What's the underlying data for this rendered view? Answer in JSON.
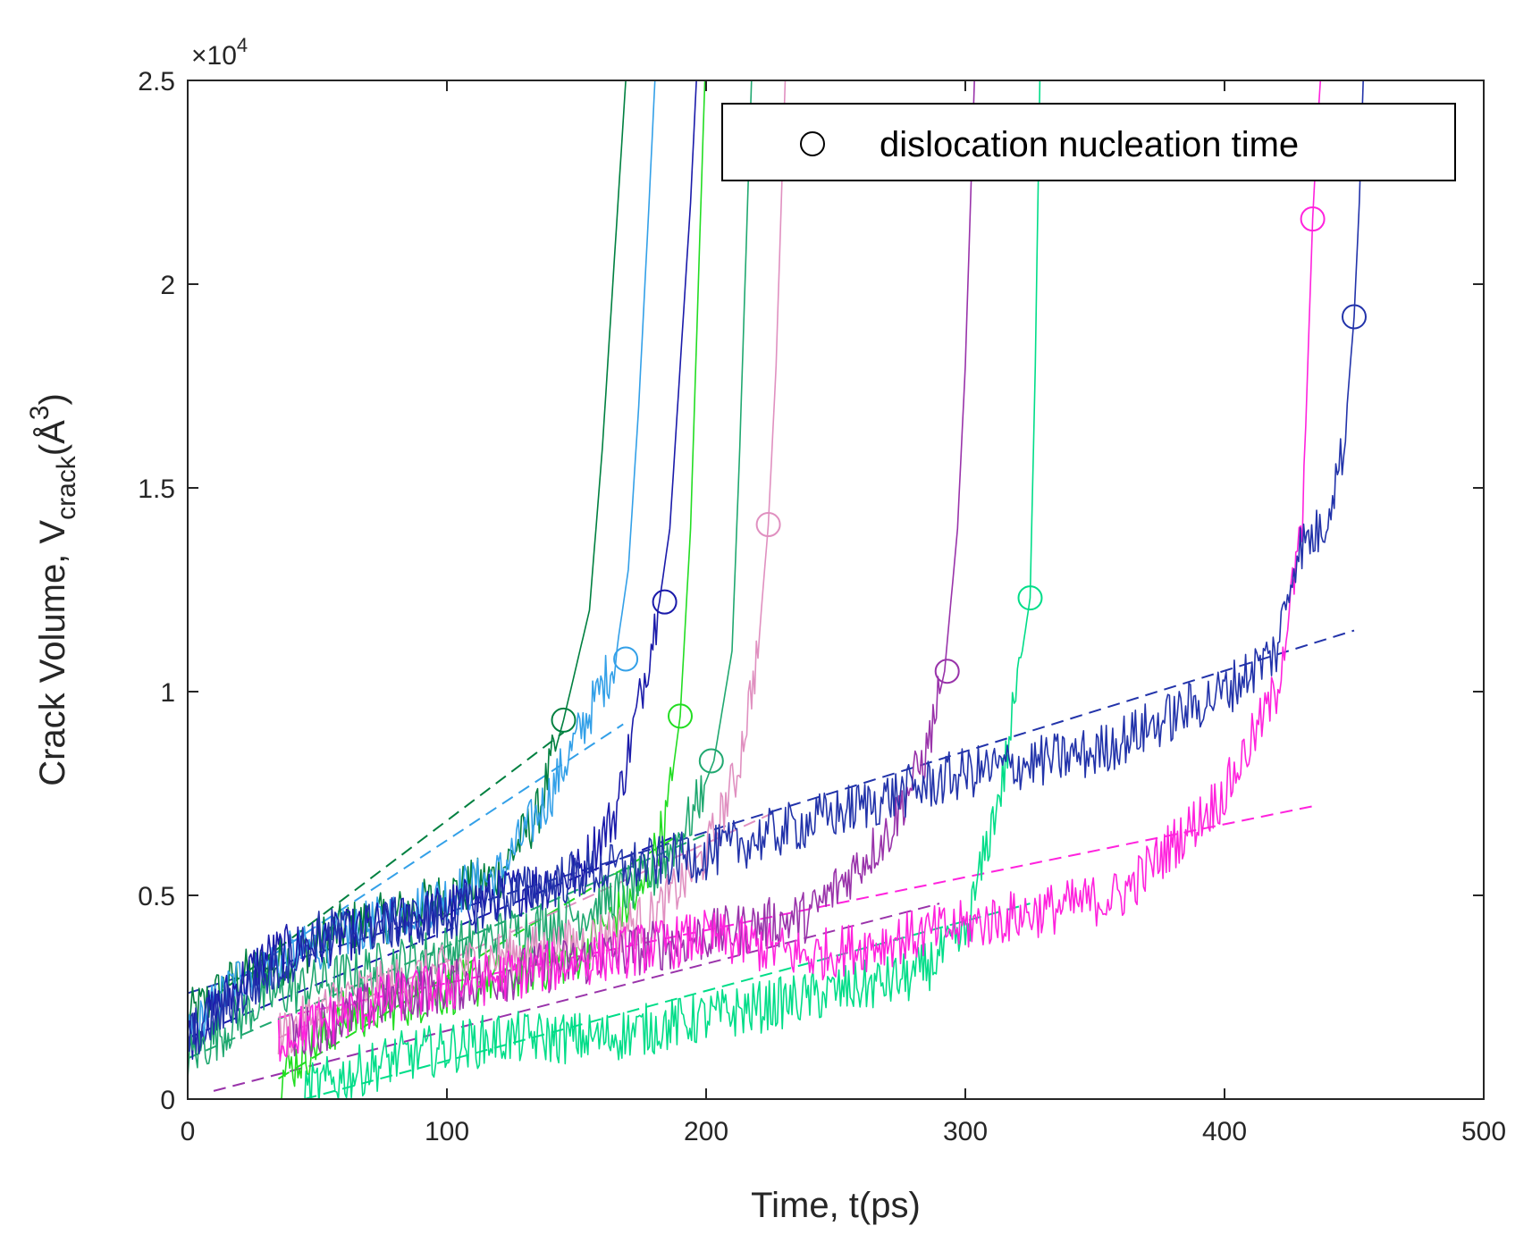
{
  "chart_data": {
    "type": "line",
    "xlabel": "Time, t(ps)",
    "ylabel": {
      "main": "Crack Volume, V",
      "subscript": "crack",
      "unit_open": "(Å",
      "unit_power": "3",
      "unit_close": ")"
    },
    "y_multiplier": {
      "base": "×10",
      "exponent": "4"
    },
    "xlim": [
      0,
      500
    ],
    "ylim": [
      0,
      25000
    ],
    "xticks": [
      0,
      100,
      200,
      300,
      400,
      500
    ],
    "xtick_labels": [
      "0",
      "100",
      "200",
      "300",
      "400",
      "500"
    ],
    "yticks": [
      0,
      5000,
      10000,
      15000,
      20000,
      25000
    ],
    "ytick_labels": [
      "0",
      "0.5",
      "1",
      "1.5",
      "2",
      "2.5"
    ],
    "grid": false,
    "legend": {
      "placement": "top-right",
      "entries": [
        {
          "marker": "circle",
          "label": "dislocation nucleation time"
        }
      ]
    },
    "series": [
      {
        "name": "dark green",
        "color": "#008040",
        "x": [
          0,
          20,
          40,
          60,
          80,
          100,
          120,
          135,
          145,
          155,
          160,
          164,
          168,
          170
        ],
        "y": [
          2000,
          3000,
          3500,
          4200,
          4500,
          5000,
          5500,
          7000,
          9300,
          12000,
          16000,
          20000,
          24000,
          26000
        ],
        "nucleation": {
          "t": 145,
          "v": 9300
        },
        "fit": {
          "x": [
            10,
            145
          ],
          "y": [
            2500,
            9000
          ]
        }
      },
      {
        "name": "light blue",
        "color": "#33a0e8",
        "x": [
          0,
          20,
          40,
          60,
          80,
          100,
          120,
          140,
          155,
          165,
          170,
          174,
          178,
          181
        ],
        "y": [
          1500,
          3000,
          3500,
          4000,
          4500,
          5000,
          5500,
          7500,
          9500,
          10800,
          13000,
          17000,
          22000,
          26000
        ],
        "nucleation": {
          "t": 169,
          "v": 10800
        },
        "fit": {
          "x": [
            20,
            168
          ],
          "y": [
            3000,
            9200
          ]
        }
      },
      {
        "name": "navy",
        "color": "#1a1aaa",
        "x": [
          0,
          30,
          60,
          90,
          120,
          150,
          165,
          175,
          182,
          186,
          190,
          194,
          197
        ],
        "y": [
          1500,
          3500,
          4000,
          4500,
          5000,
          5500,
          7000,
          10000,
          12200,
          14000,
          18000,
          22000,
          26000
        ],
        "nucleation": {
          "t": 184,
          "v": 12200
        },
        "fit": {
          "x": [
            0,
            190
          ],
          "y": [
            1500,
            6500
          ]
        }
      },
      {
        "name": "green",
        "color": "#22dd22",
        "x": [
          35,
          60,
          90,
          120,
          150,
          165,
          175,
          185,
          190,
          194,
          197,
          200
        ],
        "y": [
          500,
          2000,
          2500,
          3000,
          3500,
          4500,
          5000,
          7000,
          9400,
          14000,
          20000,
          26000
        ],
        "nucleation": {
          "t": 190,
          "v": 9400
        },
        "fit": {
          "x": [
            35,
            190
          ],
          "y": [
            500,
            6500
          ]
        }
      },
      {
        "name": "teal green",
        "color": "#20a870",
        "x": [
          0,
          30,
          60,
          90,
          120,
          150,
          180,
          195,
          203,
          210,
          213,
          216,
          218
        ],
        "y": [
          1000,
          2500,
          3000,
          3500,
          4000,
          4500,
          5500,
          7000,
          8300,
          11000,
          16000,
          22000,
          26000
        ],
        "nucleation": {
          "t": 202,
          "v": 8300
        },
        "fit": {
          "x": [
            0,
            200
          ],
          "y": [
            1000,
            6500
          ]
        }
      },
      {
        "name": "pink",
        "color": "#e090c0",
        "x": [
          35,
          60,
          90,
          120,
          150,
          180,
          200,
          212,
          220,
          224,
          227,
          229,
          231
        ],
        "y": [
          1500,
          2500,
          3000,
          3500,
          3800,
          4500,
          6000,
          8000,
          11000,
          14100,
          18000,
          22000,
          26000
        ],
        "nucleation": {
          "t": 224,
          "v": 14100
        },
        "fit": {
          "x": [
            35,
            225
          ],
          "y": [
            1500,
            7000
          ]
        }
      },
      {
        "name": "purple",
        "color": "#9933aa",
        "x": [
          40,
          80,
          120,
          160,
          200,
          240,
          270,
          285,
          292,
          297,
          300,
          302,
          304
        ],
        "y": [
          1500,
          2500,
          3000,
          3500,
          4000,
          4500,
          6500,
          8500,
          10500,
          14000,
          18000,
          22000,
          26000
        ],
        "nucleation": {
          "t": 293,
          "v": 10500
        },
        "fit": {
          "x": [
            10,
            290
          ],
          "y": [
            200,
            4800
          ]
        }
      },
      {
        "name": "spring green",
        "color": "#00dd88",
        "x": [
          45,
          80,
          120,
          160,
          200,
          240,
          280,
          300,
          315,
          322,
          325,
          327,
          329
        ],
        "y": [
          200,
          1000,
          1500,
          1500,
          2000,
          2500,
          3000,
          4000,
          8000,
          11000,
          12300,
          18000,
          26000
        ],
        "nucleation": {
          "t": 325,
          "v": 12300
        },
        "fit": {
          "x": [
            45,
            325
          ],
          "y": [
            0,
            4800
          ]
        }
      },
      {
        "name": "magenta",
        "color": "#ff22dd",
        "x": [
          35,
          80,
          120,
          160,
          200,
          240,
          280,
          320,
          360,
          400,
          420,
          430,
          434,
          436,
          438
        ],
        "y": [
          1500,
          2500,
          3000,
          3500,
          4000,
          3500,
          4000,
          4500,
          5000,
          7500,
          10000,
          14000,
          21600,
          24000,
          26000
        ],
        "nucleation": {
          "t": 434,
          "v": 21600
        },
        "fit": {
          "x": [
            35,
            435
          ],
          "y": [
            2000,
            7200
          ]
        }
      },
      {
        "name": "dark blue",
        "color": "#2233aa",
        "x": [
          0,
          50,
          100,
          150,
          200,
          250,
          300,
          350,
          400,
          420,
          428,
          438,
          446,
          450,
          452,
          454
        ],
        "y": [
          1500,
          4000,
          4500,
          5500,
          6000,
          7000,
          8000,
          8500,
          10000,
          11000,
          13500,
          14000,
          16000,
          19200,
          22000,
          26000
        ],
        "nucleation": {
          "t": 450,
          "v": 19200
        },
        "fit": {
          "x": [
            0,
            450
          ],
          "y": [
            2600,
            11500
          ]
        }
      }
    ]
  }
}
